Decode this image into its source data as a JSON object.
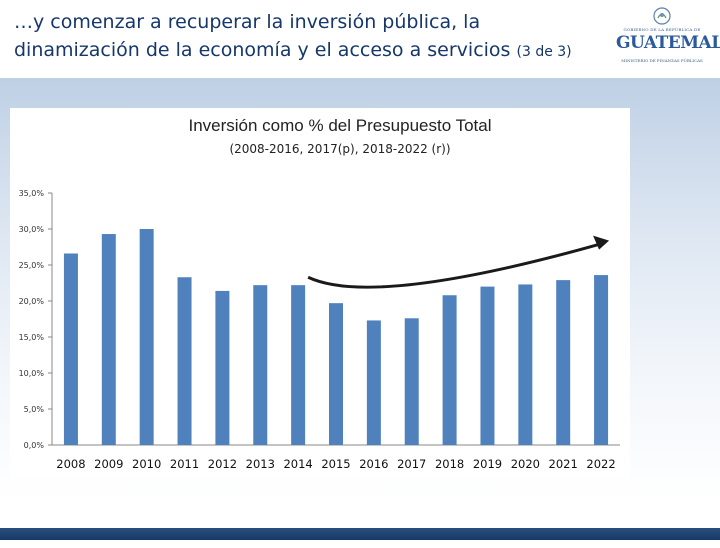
{
  "header": {
    "title_line1": "…y comenzar a recuperar  la inversión pública,  la",
    "title_line2": "dinamización de la economía y el acceso a servicios",
    "title_suffix": "(3 de 3)"
  },
  "logo": {
    "top_text": "GOBIERNO DE LA REPÚBLICA DE",
    "word": "GUATEMALA",
    "bottom_text": "MINISTERIO DE FINANZAS PÚBLICAS"
  },
  "colors": {
    "bar": "#4f81bd",
    "title_text": "#16376a",
    "arrow": "#1a1a1a"
  },
  "chart_data": {
    "type": "bar",
    "title": "Inversión como % del Presupuesto Total",
    "subtitle": "(2008-2016, 2017(p), 2018-2022 (r))",
    "categories": [
      "2008",
      "2009",
      "2010",
      "2011",
      "2012",
      "2013",
      "2014",
      "2015",
      "2016",
      "2017",
      "2018",
      "2019",
      "2020",
      "2021",
      "2022"
    ],
    "values": [
      26.6,
      29.3,
      30.0,
      23.3,
      21.4,
      22.2,
      22.2,
      19.7,
      17.3,
      17.6,
      20.8,
      22.0,
      22.3,
      22.9,
      23.6
    ],
    "ylim": [
      0,
      35
    ],
    "yticks": [
      "0,0%",
      "5,0%",
      "10,0%",
      "15,0%",
      "20,0%",
      "25,0%",
      "30,0%",
      "35,0%"
    ],
    "grid": false,
    "annotation": "curved arrow trend from 2014 down through 2016 and rising to 2022"
  }
}
